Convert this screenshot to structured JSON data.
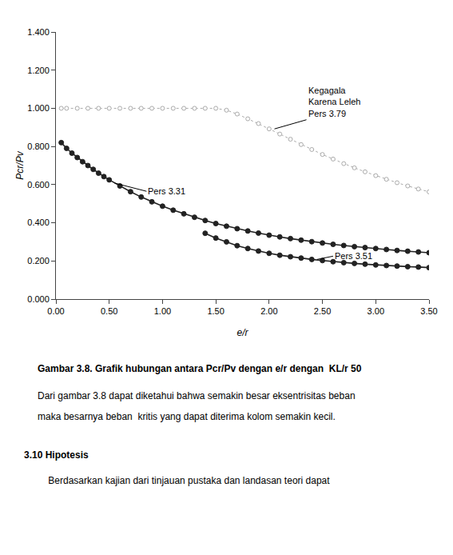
{
  "chart_data": {
    "type": "line",
    "xlabel": "e/r",
    "ylabel": "Pcr/Pv",
    "xlim": [
      0.0,
      3.5
    ],
    "ylim": [
      0.0,
      1.4
    ],
    "xticks": [
      {
        "value": 0.0,
        "label": "0.00"
      },
      {
        "value": 0.5,
        "label": "0.50"
      },
      {
        "value": 1.0,
        "label": "1.00"
      },
      {
        "value": 1.5,
        "label": "1.50"
      },
      {
        "value": 2.0,
        "label": "2.00"
      },
      {
        "value": 2.5,
        "label": "2.50"
      },
      {
        "value": 3.0,
        "label": "3.00"
      },
      {
        "value": 3.5,
        "label": "3.50"
      }
    ],
    "yticks": [
      {
        "value": 0.0,
        "label": "0.000"
      },
      {
        "value": 0.2,
        "label": "0.200"
      },
      {
        "value": 0.4,
        "label": "0.400"
      },
      {
        "value": 0.6,
        "label": "0.600"
      },
      {
        "value": 0.8,
        "label": "0.800"
      },
      {
        "value": 1.0,
        "label": "1.000"
      },
      {
        "value": 1.2,
        "label": "1.200"
      },
      {
        "value": 1.4,
        "label": "1.400"
      }
    ],
    "grid": false,
    "series": [
      {
        "color": "#aaaaaa",
        "line_style": "dotted",
        "marker": "circle-open",
        "x": [
          0.05,
          0.1,
          0.2,
          0.3,
          0.4,
          0.5,
          0.6,
          0.7,
          0.8,
          0.9,
          1.0,
          1.1,
          1.2,
          1.3,
          1.4,
          1.5,
          1.6,
          1.7,
          1.8,
          1.9,
          2.0,
          2.1,
          2.2,
          2.3,
          2.4,
          2.5,
          2.6,
          2.7,
          2.8,
          2.9,
          3.0,
          3.1,
          3.2,
          3.3,
          3.4,
          3.5
        ],
        "values": [
          1.0,
          1.0,
          1.0,
          1.0,
          1.0,
          1.0,
          1.0,
          1.0,
          1.0,
          1.0,
          1.0,
          1.0,
          1.0,
          1.0,
          1.0,
          1.0,
          0.99,
          0.97,
          0.945,
          0.92,
          0.892,
          0.865,
          0.838,
          0.81,
          0.784,
          0.758,
          0.734,
          0.71,
          0.688,
          0.667,
          0.647,
          0.628,
          0.61,
          0.593,
          0.577,
          0.562
        ]
      },
      {
        "color": "#222222",
        "line_style": "solid",
        "marker": "circle",
        "x": [
          0.05,
          0.1,
          0.15,
          0.2,
          0.25,
          0.3,
          0.35,
          0.4,
          0.45,
          0.5,
          0.6,
          0.7,
          0.8,
          0.9,
          1.0,
          1.1,
          1.2,
          1.3,
          1.4,
          1.5,
          1.6,
          1.7,
          1.8,
          1.9,
          2.0,
          2.1,
          2.2,
          2.3,
          2.4,
          2.5,
          2.6,
          2.7,
          2.8,
          2.9,
          3.0,
          3.1,
          3.2,
          3.3,
          3.4,
          3.5
        ],
        "values": [
          0.82,
          0.79,
          0.765,
          0.742,
          0.72,
          0.7,
          0.68,
          0.66,
          0.642,
          0.625,
          0.593,
          0.563,
          0.535,
          0.51,
          0.487,
          0.466,
          0.447,
          0.429,
          0.412,
          0.396,
          0.382,
          0.369,
          0.357,
          0.346,
          0.335,
          0.326,
          0.317,
          0.309,
          0.301,
          0.294,
          0.287,
          0.281,
          0.275,
          0.27,
          0.265,
          0.26,
          0.255,
          0.251,
          0.247,
          0.243
        ]
      },
      {
        "color": "#222222",
        "line_style": "solid",
        "marker": "circle",
        "x": [
          1.4,
          1.5,
          1.6,
          1.7,
          1.8,
          1.9,
          2.0,
          2.1,
          2.2,
          2.3,
          2.4,
          2.5,
          2.6,
          2.7,
          2.8,
          2.9,
          3.0,
          3.1,
          3.2,
          3.3,
          3.4,
          3.5
        ],
        "values": [
          0.345,
          0.32,
          0.3,
          0.28,
          0.265,
          0.252,
          0.24,
          0.23,
          0.222,
          0.215,
          0.208,
          0.202,
          0.196,
          0.191,
          0.187,
          0.183,
          0.179,
          0.176,
          0.173,
          0.17,
          0.168,
          0.165
        ]
      }
    ],
    "annotations": [
      {
        "text": "Kegagala\nKarena Leleh\nPers 3.79",
        "x": 2.05,
        "y": 0.892,
        "text_x": 2.35,
        "text_y": 0.94
      },
      {
        "text": "Pers 3.31",
        "x": 0.55,
        "y": 0.608,
        "text_x": 0.85,
        "text_y": 0.565
      },
      {
        "text": "Pers 3.51",
        "x": 2.45,
        "y": 0.208,
        "text_x": 2.6,
        "text_y": 0.225
      }
    ],
    "caption": "Gambar 3.8. Grafik hubungan antara Pcr/Pv dengan e/r dengan  KL/r 50",
    "paragraphs": [
      "Dari gambar 3.8 dapat diketahui bahwa semakin besar eksentrisitas beban",
      "maka besarnya beban  kritis yang dapat diterima kolom semakin kecil."
    ],
    "heading": "3.10 Hipotesis",
    "heading_paragraphs": [
      "    Berdasarkan kajian dari tinjauan pustaka dan landasan teori dapat"
    ]
  }
}
